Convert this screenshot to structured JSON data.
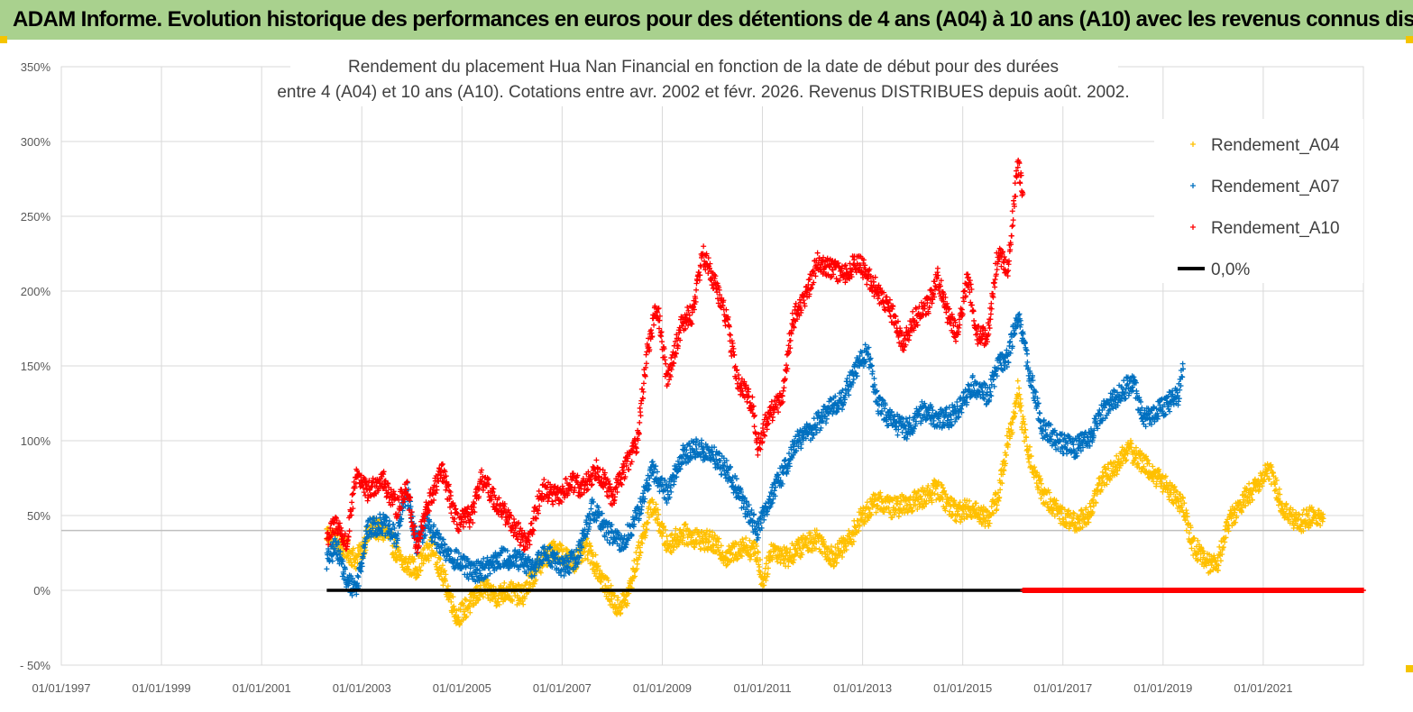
{
  "header": {
    "title": "ADAM Informe. Evolution historique des performances en euros pour des détentions de 4 ans (A04) à 10 ans (A10) avec les revenus connus distribués"
  },
  "chart_data": {
    "type": "scatter",
    "title_line1": "Rendement du placement Hua Nan Financial  en fonction de la date de début pour des durées",
    "title_line2": "entre 4 (A04) et 10 ans (A10). Cotations entre avr. 2002 et févr. 2026. Revenus DISTRIBUES depuis août. 2002.",
    "xlabel": "",
    "ylabel": "",
    "x_range": [
      1997.0,
      2023.0
    ],
    "ylim": [
      -50,
      350
    ],
    "y_ticks": [
      -50,
      0,
      50,
      100,
      150,
      200,
      250,
      300,
      350
    ],
    "y_tick_labels": [
      "- 50%",
      "0%",
      "50%",
      "100%",
      "150%",
      "200%",
      "250%",
      "300%",
      "350%"
    ],
    "x_ticks": [
      1997,
      1999,
      2001,
      2003,
      2005,
      2007,
      2009,
      2011,
      2013,
      2015,
      2017,
      2019,
      2021
    ],
    "x_tick_labels": [
      "01/01/1997",
      "01/01/1999",
      "01/01/2001",
      "01/01/2003",
      "01/01/2005",
      "01/01/2007",
      "01/01/2009",
      "01/01/2011",
      "01/01/2013",
      "01/01/2015",
      "01/01/2017",
      "01/01/2019",
      "01/01/2021"
    ],
    "reference_line_y": 40,
    "legend_position": "top-right",
    "series": [
      {
        "name": "Rendement_A04",
        "color": "#ffc000",
        "marker": "+",
        "points": [
          [
            2002.3,
            38
          ],
          [
            2002.6,
            30
          ],
          [
            2002.9,
            20
          ],
          [
            2003.2,
            42
          ],
          [
            2003.5,
            38
          ],
          [
            2003.8,
            18
          ],
          [
            2004.1,
            15
          ],
          [
            2004.4,
            30
          ],
          [
            2004.7,
            2
          ],
          [
            2004.9,
            -18
          ],
          [
            2005.2,
            -8
          ],
          [
            2005.4,
            2
          ],
          [
            2005.7,
            -4
          ],
          [
            2005.9,
            0
          ],
          [
            2006.2,
            -4
          ],
          [
            2006.4,
            8
          ],
          [
            2006.6,
            20
          ],
          [
            2006.9,
            28
          ],
          [
            2007.2,
            18
          ],
          [
            2007.5,
            28
          ],
          [
            2007.8,
            8
          ],
          [
            2008.1,
            -12
          ],
          [
            2008.3,
            -5
          ],
          [
            2008.6,
            35
          ],
          [
            2008.8,
            58
          ],
          [
            2009.1,
            30
          ],
          [
            2009.4,
            38
          ],
          [
            2009.7,
            35
          ],
          [
            2010.0,
            32
          ],
          [
            2010.3,
            22
          ],
          [
            2010.6,
            30
          ],
          [
            2010.9,
            25
          ],
          [
            2011.0,
            5
          ],
          [
            2011.2,
            28
          ],
          [
            2011.5,
            22
          ],
          [
            2011.8,
            30
          ],
          [
            2012.1,
            35
          ],
          [
            2012.4,
            22
          ],
          [
            2012.7,
            32
          ],
          [
            2013.0,
            50
          ],
          [
            2013.3,
            60
          ],
          [
            2013.6,
            55
          ],
          [
            2013.9,
            58
          ],
          [
            2014.2,
            62
          ],
          [
            2014.5,
            68
          ],
          [
            2014.7,
            58
          ],
          [
            2014.9,
            52
          ],
          [
            2015.2,
            55
          ],
          [
            2015.5,
            48
          ],
          [
            2015.7,
            62
          ],
          [
            2015.9,
            100
          ],
          [
            2016.0,
            110
          ],
          [
            2016.1,
            135
          ],
          [
            2016.2,
            110
          ],
          [
            2016.4,
            80
          ],
          [
            2016.6,
            65
          ],
          [
            2016.9,
            52
          ],
          [
            2017.2,
            45
          ],
          [
            2017.5,
            50
          ],
          [
            2017.8,
            75
          ],
          [
            2018.1,
            85
          ],
          [
            2018.3,
            95
          ],
          [
            2018.6,
            85
          ],
          [
            2018.9,
            75
          ],
          [
            2019.2,
            65
          ],
          [
            2019.4,
            55
          ],
          [
            2019.6,
            30
          ],
          [
            2019.9,
            18
          ],
          [
            2020.1,
            20
          ],
          [
            2020.3,
            45
          ],
          [
            2020.6,
            60
          ],
          [
            2020.9,
            72
          ],
          [
            2021.1,
            82
          ],
          [
            2021.4,
            55
          ],
          [
            2021.7,
            45
          ],
          [
            2022.0,
            50
          ],
          [
            2022.2,
            48
          ]
        ]
      },
      {
        "name": "Rendement_A07",
        "color": "#0070c0",
        "marker": "+",
        "points": [
          [
            2002.3,
            20
          ],
          [
            2002.5,
            30
          ],
          [
            2002.7,
            5
          ],
          [
            2002.9,
            2
          ],
          [
            2003.1,
            40
          ],
          [
            2003.4,
            45
          ],
          [
            2003.7,
            35
          ],
          [
            2003.9,
            68
          ],
          [
            2004.1,
            30
          ],
          [
            2004.3,
            45
          ],
          [
            2004.6,
            28
          ],
          [
            2004.9,
            20
          ],
          [
            2005.2,
            12
          ],
          [
            2005.5,
            15
          ],
          [
            2005.8,
            22
          ],
          [
            2006.1,
            20
          ],
          [
            2006.4,
            15
          ],
          [
            2006.7,
            25
          ],
          [
            2007.0,
            15
          ],
          [
            2007.3,
            22
          ],
          [
            2007.6,
            55
          ],
          [
            2007.9,
            40
          ],
          [
            2008.2,
            30
          ],
          [
            2008.5,
            50
          ],
          [
            2008.8,
            80
          ],
          [
            2009.1,
            65
          ],
          [
            2009.4,
            90
          ],
          [
            2009.7,
            95
          ],
          [
            2010.0,
            90
          ],
          [
            2010.3,
            80
          ],
          [
            2010.6,
            60
          ],
          [
            2010.9,
            40
          ],
          [
            2011.1,
            58
          ],
          [
            2011.4,
            78
          ],
          [
            2011.7,
            100
          ],
          [
            2012.0,
            108
          ],
          [
            2012.3,
            120
          ],
          [
            2012.6,
            128
          ],
          [
            2012.9,
            150
          ],
          [
            2013.1,
            160
          ],
          [
            2013.3,
            125
          ],
          [
            2013.6,
            112
          ],
          [
            2013.9,
            108
          ],
          [
            2014.2,
            120
          ],
          [
            2014.5,
            115
          ],
          [
            2014.7,
            115
          ],
          [
            2014.9,
            120
          ],
          [
            2015.2,
            138
          ],
          [
            2015.5,
            130
          ],
          [
            2015.7,
            150
          ],
          [
            2015.9,
            155
          ],
          [
            2016.1,
            185
          ],
          [
            2016.3,
            150
          ],
          [
            2016.6,
            108
          ],
          [
            2016.9,
            100
          ],
          [
            2017.2,
            95
          ],
          [
            2017.5,
            100
          ],
          [
            2017.8,
            120
          ],
          [
            2018.1,
            130
          ],
          [
            2018.4,
            140
          ],
          [
            2018.6,
            115
          ],
          [
            2018.9,
            120
          ],
          [
            2019.1,
            125
          ],
          [
            2019.3,
            130
          ],
          [
            2019.4,
            148
          ]
        ]
      },
      {
        "name": "Rendement_A10",
        "color": "#ff0000",
        "marker": "+",
        "points": [
          [
            2002.3,
            35
          ],
          [
            2002.5,
            45
          ],
          [
            2002.7,
            30
          ],
          [
            2002.9,
            80
          ],
          [
            2003.1,
            65
          ],
          [
            2003.4,
            75
          ],
          [
            2003.7,
            55
          ],
          [
            2003.9,
            70
          ],
          [
            2004.1,
            28
          ],
          [
            2004.3,
            55
          ],
          [
            2004.6,
            80
          ],
          [
            2004.9,
            45
          ],
          [
            2005.2,
            50
          ],
          [
            2005.4,
            75
          ],
          [
            2005.7,
            58
          ],
          [
            2006.0,
            45
          ],
          [
            2006.3,
            30
          ],
          [
            2006.6,
            68
          ],
          [
            2006.9,
            62
          ],
          [
            2007.2,
            72
          ],
          [
            2007.4,
            68
          ],
          [
            2007.7,
            82
          ],
          [
            2008.0,
            62
          ],
          [
            2008.3,
            85
          ],
          [
            2008.5,
            100
          ],
          [
            2008.7,
            160
          ],
          [
            2008.9,
            190
          ],
          [
            2009.1,
            140
          ],
          [
            2009.4,
            180
          ],
          [
            2009.6,
            185
          ],
          [
            2009.8,
            225
          ],
          [
            2010.0,
            210
          ],
          [
            2010.3,
            180
          ],
          [
            2010.5,
            140
          ],
          [
            2010.8,
            125
          ],
          [
            2010.9,
            95
          ],
          [
            2011.1,
            115
          ],
          [
            2011.4,
            130
          ],
          [
            2011.6,
            180
          ],
          [
            2011.9,
            200
          ],
          [
            2012.1,
            220
          ],
          [
            2012.4,
            215
          ],
          [
            2012.6,
            210
          ],
          [
            2012.9,
            220
          ],
          [
            2013.1,
            210
          ],
          [
            2013.4,
            195
          ],
          [
            2013.6,
            185
          ],
          [
            2013.8,
            165
          ],
          [
            2014.0,
            180
          ],
          [
            2014.3,
            190
          ],
          [
            2014.5,
            210
          ],
          [
            2014.7,
            185
          ],
          [
            2014.9,
            170
          ],
          [
            2015.1,
            210
          ],
          [
            2015.3,
            170
          ],
          [
            2015.5,
            170
          ],
          [
            2015.7,
            225
          ],
          [
            2015.9,
            215
          ],
          [
            2016.0,
            250
          ],
          [
            2016.1,
            285
          ],
          [
            2016.2,
            265
          ]
        ]
      },
      {
        "name": "0,0%",
        "color": "#000000",
        "marker": "line",
        "x_start": 2002.3,
        "x_end": 2016.2,
        "value": 0
      }
    ],
    "zero_tail": {
      "name": "Rendement_A10",
      "color": "#ff0000",
      "x_start": 2016.2,
      "x_end": 2023.0,
      "value": 0
    }
  }
}
